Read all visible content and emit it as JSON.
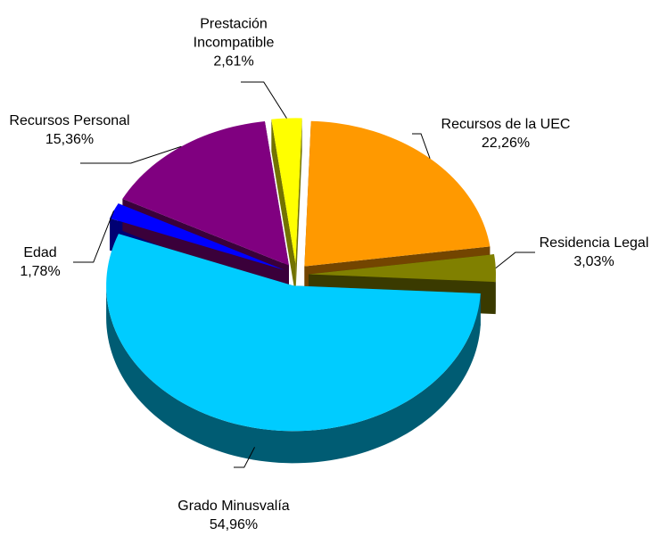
{
  "chart_data": {
    "type": "pie",
    "categories": [
      "Recursos de la UEC",
      "Residencia Legal",
      "Grado Minusvalía",
      "Edad",
      "Recursos Personal",
      "Prestación Incompatible"
    ],
    "values": [
      22.26,
      3.03,
      54.96,
      1.78,
      15.36,
      2.61
    ],
    "value_labels": [
      "22,26%",
      "3,03%",
      "54,96%",
      "1,78%",
      "15,36%",
      "2,61%"
    ],
    "colors": [
      "#ff9900",
      "#808000",
      "#00ccff",
      "#0000ff",
      "#800080",
      "#ffff00"
    ]
  }
}
